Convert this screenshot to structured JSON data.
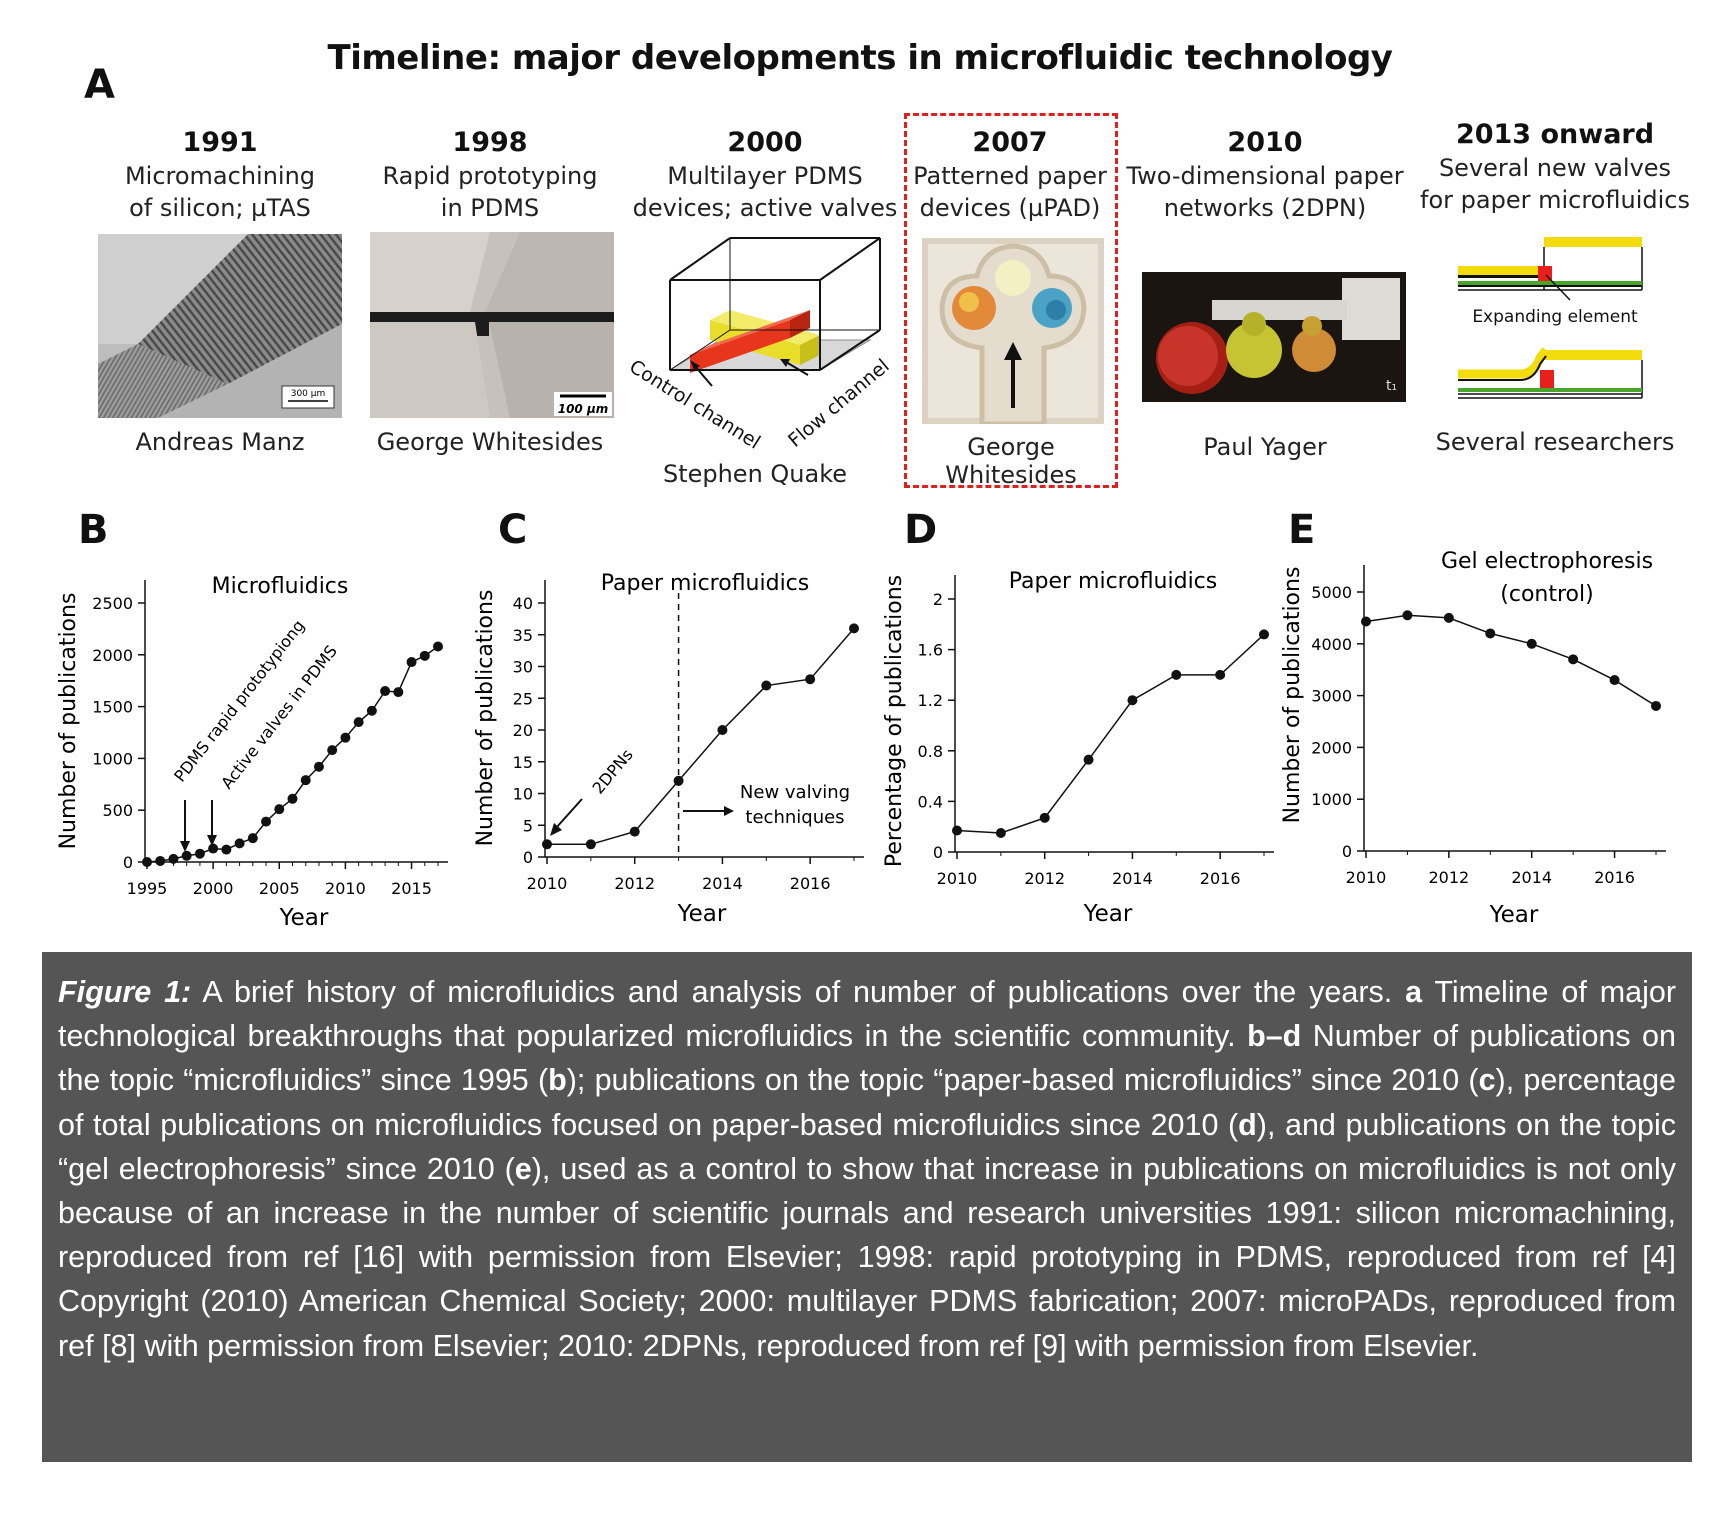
{
  "panel_labels": {
    "a": "A",
    "b": "B",
    "c": "C",
    "d": "D",
    "e": "E"
  },
  "figure_title": "Timeline: major developments in microfluidic technology",
  "timeline": [
    {
      "year": "1991",
      "desc1": "Micromachining",
      "desc2": "of silicon; µTAS",
      "person": "Andreas Manz",
      "scalebar": "300 µm"
    },
    {
      "year": "1998",
      "desc1": "Rapid prototyping",
      "desc2": "in PDMS",
      "person": "George Whitesides",
      "scalebar": "100 µm"
    },
    {
      "year": "2000",
      "desc1": "Multilayer PDMS",
      "desc2": "devices; active valves",
      "person": "Stephen Quake",
      "label_control": "Control channel",
      "label_flow": "Flow channel"
    },
    {
      "year": "2007",
      "desc1": "Patterned paper",
      "desc2": "devices (µPAD)",
      "person": "George Whitesides"
    },
    {
      "year": "2010",
      "desc1": "Two-dimensional paper",
      "desc2": "networks (2DPN)",
      "person": "Paul Yager",
      "corner": "t₁"
    },
    {
      "year": "2013 onward",
      "desc1": "Several new valves",
      "desc2": "for paper microfluidics",
      "person": "Several researchers",
      "label_expanding": "Expanding element"
    }
  ],
  "chart_data": [
    {
      "id": "B",
      "type": "line",
      "title": "Microfluidics",
      "xlabel": "Year",
      "ylabel": "Number of publications",
      "xlim": [
        1995,
        2017
      ],
      "ylim": [
        0,
        2500
      ],
      "xticks": [
        1995,
        2000,
        2005,
        2010,
        2015
      ],
      "yticks": [
        0,
        500,
        1000,
        1500,
        2000,
        2500
      ],
      "x": [
        1995,
        1996,
        1997,
        1998,
        1999,
        2000,
        2001,
        2002,
        2003,
        2004,
        2005,
        2006,
        2007,
        2008,
        2009,
        2010,
        2011,
        2012,
        2013,
        2014,
        2015,
        2016,
        2017
      ],
      "y": [
        0,
        10,
        30,
        60,
        80,
        130,
        120,
        180,
        230,
        390,
        510,
        610,
        790,
        920,
        1080,
        1200,
        1350,
        1460,
        1650,
        1640,
        1930,
        1990,
        2080
      ],
      "annotations": [
        {
          "text": "PDMS rapid prototypiong",
          "x": 1998
        },
        {
          "text": "Active valves in PDMS",
          "x": 2000
        }
      ]
    },
    {
      "id": "C",
      "type": "line",
      "title": "Paper microfluidics",
      "xlabel": "Year",
      "ylabel": "Number of publications",
      "xlim": [
        2010,
        2017
      ],
      "ylim": [
        0,
        40
      ],
      "xticks": [
        2010,
        2012,
        2014,
        2016
      ],
      "yticks": [
        0,
        5,
        10,
        15,
        20,
        25,
        30,
        35,
        40
      ],
      "x": [
        2010,
        2011,
        2012,
        2013,
        2014,
        2015,
        2016,
        2017
      ],
      "y": [
        2,
        2,
        4,
        12,
        20,
        27,
        28,
        36
      ],
      "vline": 2013,
      "annotations": [
        {
          "text": "2DPNs"
        },
        {
          "text": "New valving",
          "text2": "techniques"
        }
      ]
    },
    {
      "id": "D",
      "type": "line",
      "title": "Paper microfluidics",
      "xlabel": "Year",
      "ylabel": "Percentage of publications",
      "xlim": [
        2010,
        2017
      ],
      "ylim": [
        0,
        2
      ],
      "xticks": [
        2010,
        2012,
        2014,
        2016
      ],
      "yticks": [
        "0",
        "0.4",
        "0.8",
        "1.2",
        "1.6",
        "2"
      ],
      "x": [
        2010,
        2011,
        2012,
        2013,
        2014,
        2015,
        2016,
        2017
      ],
      "y": [
        0.17,
        0.15,
        0.27,
        0.73,
        1.2,
        1.4,
        1.4,
        1.72
      ]
    },
    {
      "id": "E",
      "type": "line",
      "title": "Gel electrophoresis",
      "title2": "(control)",
      "xlabel": "Year",
      "ylabel": "Number of publications",
      "xlim": [
        2010,
        2017
      ],
      "ylim": [
        0,
        5000
      ],
      "xticks": [
        2010,
        2012,
        2014,
        2016
      ],
      "yticks": [
        0,
        1000,
        2000,
        3000,
        4000,
        5000
      ],
      "x": [
        2010,
        2011,
        2012,
        2013,
        2014,
        2015,
        2016,
        2017
      ],
      "y": [
        4430,
        4550,
        4500,
        4200,
        4000,
        3700,
        3300,
        2800
      ]
    }
  ],
  "caption": {
    "label": "Figure 1:",
    "t1": " A brief history of microfluidics and analysis of number of publications over the years. ",
    "b1": "a",
    "t2": " Timeline of major technological breakthroughs that popularized microfluidics in the scientific community. ",
    "b2": "b–d",
    "t3": " Number of publications on the topic “microfluidics” since 1995 (",
    "b3": "b",
    "t4": "); publications on the topic “paper-based microfluidics” since 2010 (",
    "b4": "c",
    "t5": "), percentage of total publications on microfluidics focused on paper-based microfluidics since 2010 (",
    "b5": "d",
    "t6": "), and publications on the topic “gel electrophoresis” since 2010 (",
    "b6": "e",
    "t7": "), used as a control to show that increase in publications on microfluidics is not only because of an increase in the number of scientific journals and research universities 1991: silicon micromachining, reproduced from ref [16] with permission from Elsevier; 1998: rapid prototyping in PDMS, reproduced from ref [4] Copyright (2010) American Chemical Society; 2000: multilayer PDMS fabrication; 2007: microPADs, reproduced from ref [8] with permission from Elsevier; 2010: 2DPNs, reproduced from ref [9] with permission from Elsevier."
  }
}
